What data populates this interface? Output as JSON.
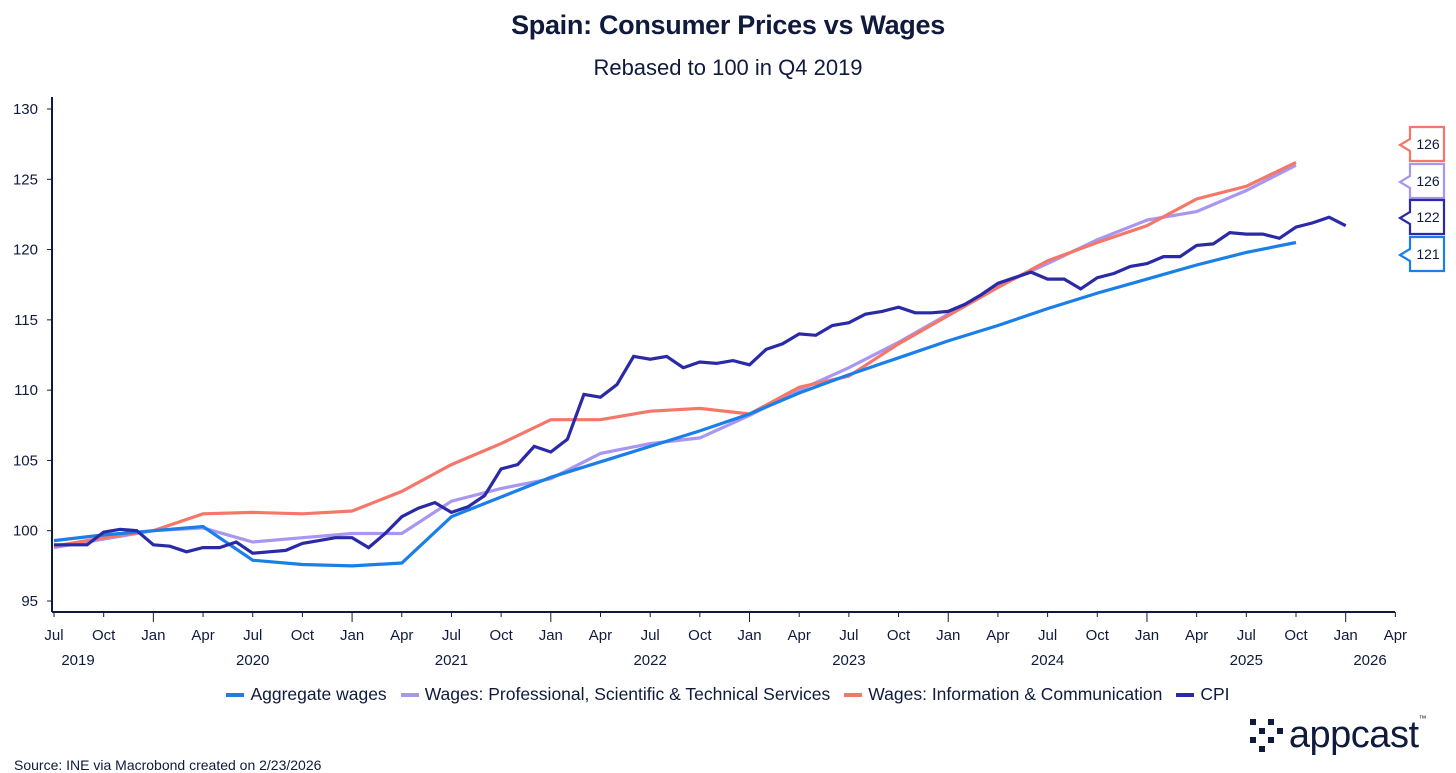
{
  "chart_data": {
    "type": "line",
    "title": "Spain: Consumer Prices vs Wages",
    "subtitle": "Rebased to 100 in Q4 2019",
    "xlabel": "",
    "ylabel": "",
    "ylim": [
      95,
      130
    ],
    "yticks": [
      95,
      100,
      105,
      110,
      115,
      120,
      125,
      130
    ],
    "x_start": "2019-07",
    "x_end": "2026-04",
    "xtick_months": [
      "Jul",
      "Oct",
      "Jan",
      "Apr",
      "Jul",
      "Oct",
      "Jan",
      "Apr",
      "Jul",
      "Oct",
      "Jan",
      "Apr",
      "Jul",
      "Oct",
      "Jan",
      "Apr",
      "Jul",
      "Oct",
      "Jan",
      "Apr",
      "Jul",
      "Oct",
      "Jan",
      "Apr",
      "Jul",
      "Oct",
      "Jan",
      "Apr"
    ],
    "xtick_years": [
      "2019",
      "2020",
      "2021",
      "2022",
      "2023",
      "2024",
      "2025",
      "2026"
    ],
    "grid": false,
    "legend_position": "bottom",
    "series": [
      {
        "name": "Aggregate wages",
        "color": "#1a7fe8",
        "step_months": 3,
        "start_month_index": 0,
        "values": [
          99.3,
          99.7,
          100.0,
          100.3,
          97.9,
          97.6,
          97.5,
          97.7,
          101.0,
          102.4,
          103.8,
          104.9,
          106.0,
          107.1,
          108.3,
          109.8,
          111.1,
          112.3,
          113.5,
          114.6,
          115.8,
          116.9,
          117.9,
          118.9,
          119.8,
          120.5
        ],
        "end_label": "121"
      },
      {
        "name": "Wages: Professional, Scientific & Technical Services",
        "color": "#a996f0",
        "step_months": 3,
        "start_month_index": 0,
        "values": [
          98.8,
          99.4,
          100.0,
          100.2,
          99.2,
          99.5,
          99.8,
          99.8,
          102.1,
          103.0,
          103.7,
          105.5,
          106.2,
          106.6,
          108.2,
          110.0,
          111.6,
          113.4,
          115.4,
          117.4,
          119.0,
          120.7,
          122.1,
          122.7,
          124.2,
          126.0
        ],
        "end_label": "126"
      },
      {
        "name": "Wages: Information & Communication",
        "color": "#f4776a",
        "step_months": 3,
        "start_month_index": 0,
        "values": [
          98.9,
          99.5,
          100.0,
          101.2,
          101.3,
          101.2,
          101.4,
          102.8,
          104.7,
          106.2,
          107.9,
          107.9,
          108.5,
          108.7,
          108.3,
          110.2,
          111.0,
          113.3,
          115.3,
          117.3,
          119.2,
          120.5,
          121.7,
          123.6,
          124.5,
          126.2
        ],
        "end_label": "126"
      },
      {
        "name": "CPI",
        "color": "#2a2aa8",
        "step_months": 1,
        "start_month_index": 0,
        "values": [
          99.0,
          99.0,
          99.0,
          99.9,
          100.1,
          100.0,
          99.0,
          98.9,
          98.5,
          98.8,
          98.8,
          99.2,
          98.4,
          98.5,
          98.6,
          99.1,
          99.3,
          99.5,
          99.5,
          98.8,
          99.8,
          101.0,
          101.6,
          102.0,
          101.3,
          101.7,
          102.5,
          104.4,
          104.7,
          106.0,
          105.6,
          106.5,
          109.7,
          109.5,
          110.4,
          112.4,
          112.2,
          112.4,
          111.6,
          112.0,
          111.9,
          112.1,
          111.8,
          112.9,
          113.3,
          114.0,
          113.9,
          114.6,
          114.8,
          115.4,
          115.6,
          115.9,
          115.5,
          115.5,
          115.6,
          116.1,
          116.8,
          117.6,
          118.0,
          118.4,
          117.9,
          117.9,
          117.2,
          118.0,
          118.3,
          118.8,
          119.0,
          119.5,
          119.5,
          120.3,
          120.4,
          121.2,
          121.1,
          121.1,
          120.8,
          121.6,
          121.9,
          122.3,
          121.7
        ],
        "end_label": "122"
      }
    ],
    "end_labels_order": [
      2,
      1,
      3,
      0
    ]
  },
  "source": "Source: INE via Macrobond created on 2/23/2026",
  "logo": {
    "text": "appcast",
    "tm": "™"
  }
}
